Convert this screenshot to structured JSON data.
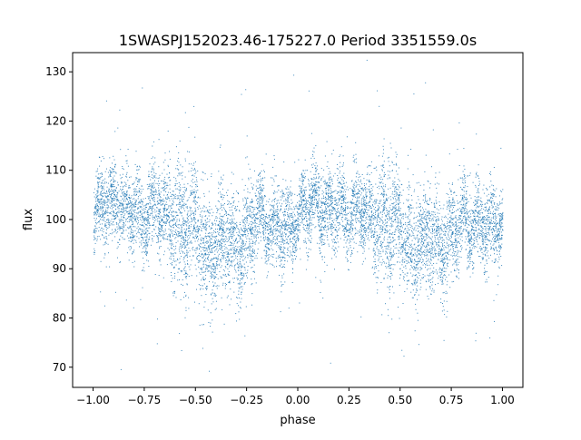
{
  "chart_data": {
    "type": "scatter",
    "title": "1SWASPJ152023.46-175227.0 Period 3351559.0s",
    "xlabel": "phase",
    "ylabel": "flux",
    "xlim": [
      -1.1,
      1.1
    ],
    "ylim": [
      65.9,
      133.9
    ],
    "xticks": [
      -1.0,
      -0.75,
      -0.5,
      -0.25,
      0.0,
      0.25,
      0.5,
      0.75,
      1.0
    ],
    "xtick_labels": [
      "−1.00",
      "−0.75",
      "−0.50",
      "−0.25",
      "0.00",
      "0.25",
      "0.50",
      "0.75",
      "1.00"
    ],
    "yticks": [
      70,
      80,
      90,
      100,
      110,
      120,
      130
    ],
    "ytick_labels": [
      "70",
      "80",
      "90",
      "100",
      "110",
      "120",
      "130"
    ],
    "grid": false,
    "legend": "none",
    "marker_color": "#1f77b4",
    "series": [
      {
        "x_range": [
          -1.0,
          1.0
        ],
        "phase_profile": {
          "phase": [
            0.0,
            0.05,
            0.1,
            0.15,
            0.2,
            0.25,
            0.3,
            0.35,
            0.4,
            0.45,
            0.5,
            0.55,
            0.6,
            0.65,
            0.7,
            0.75,
            0.8,
            0.85,
            0.9,
            0.95,
            1.0
          ],
          "median_flux": [
            100,
            104,
            103,
            101,
            103,
            100,
            103,
            101,
            100,
            98,
            100,
            93,
            95,
            97,
            94,
            97,
            101,
            99,
            99,
            98,
            100
          ],
          "spread": [
            3,
            4,
            4,
            4,
            4,
            4,
            4,
            4,
            6,
            7,
            5,
            6,
            5,
            5,
            5,
            5,
            4,
            4,
            4,
            4,
            3
          ]
        },
        "approx_point_count": 24000
      }
    ]
  }
}
